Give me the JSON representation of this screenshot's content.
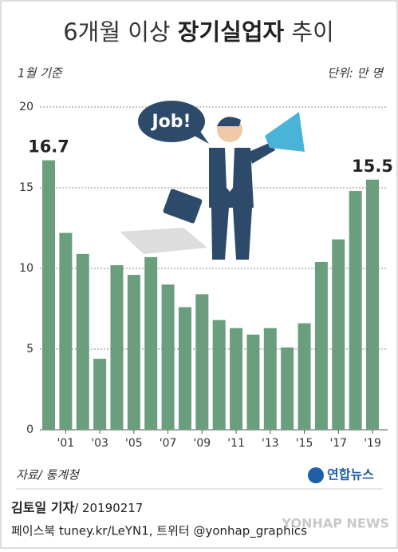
{
  "chart_data": {
    "type": "bar",
    "title": "6개월 이상 ",
    "title_bold": "장기실업자",
    "title_end": " 추이",
    "subtitle": "1월 기준",
    "unit": "단위: 만 명",
    "annotation": "Job!",
    "categories": [
      null,
      "'01",
      null,
      "'03",
      null,
      "'05",
      null,
      "'07",
      null,
      "'09",
      null,
      "'11",
      null,
      "'13",
      null,
      "'15",
      null,
      "'17",
      null,
      "'19"
    ],
    "values": [
      16.7,
      12.2,
      10.9,
      4.4,
      10.2,
      9.6,
      10.7,
      9.0,
      7.6,
      8.4,
      6.8,
      6.3,
      5.9,
      6.3,
      5.1,
      6.6,
      10.4,
      11.8,
      14.8,
      15.5
    ],
    "value_labels": [
      "16.7",
      null,
      null,
      null,
      null,
      null,
      null,
      null,
      null,
      null,
      null,
      null,
      null,
      null,
      null,
      null,
      null,
      null,
      null,
      "15.5"
    ],
    "color": "#6b9e7c",
    "ylim": [
      0,
      20
    ],
    "yticks": [
      0,
      5,
      10,
      15,
      20
    ],
    "grid": true,
    "source": "자료/ 통계청",
    "logo": "연합뉴스",
    "reporter": "김토일 기자",
    "date": "/ 20190217",
    "footer": "페이스북 tuney.kr/LeYN1, 트위터 @yonhap_graphics",
    "watermark": "YONHAP NEWS"
  }
}
